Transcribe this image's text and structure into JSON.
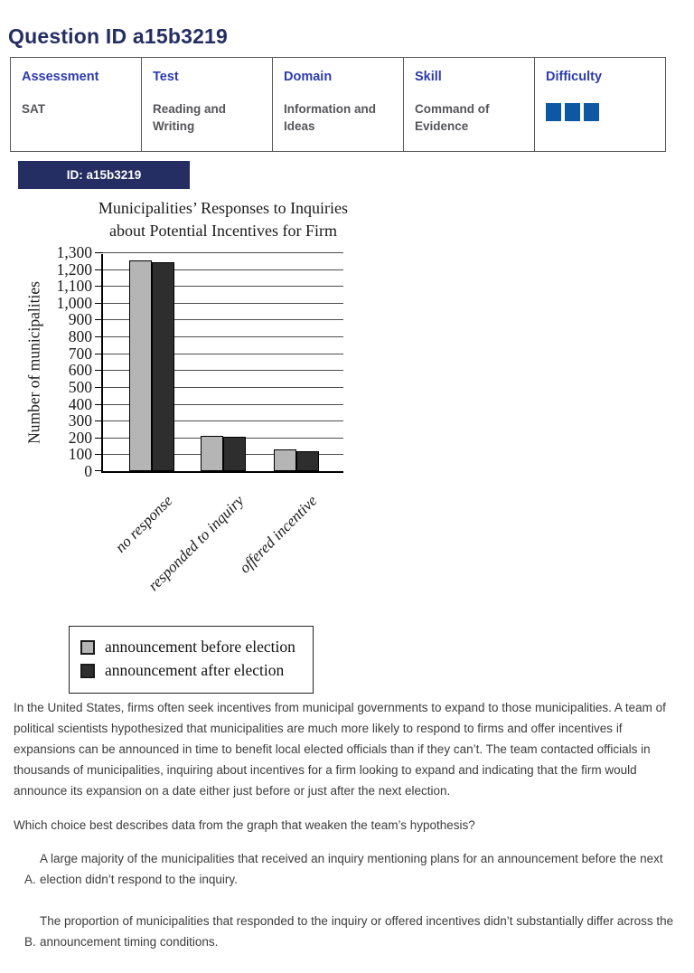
{
  "page": {
    "title": "Question ID a15b3219"
  },
  "meta_table": {
    "columns": [
      {
        "label": "Assessment",
        "value": "SAT"
      },
      {
        "label": "Test",
        "value": "Reading and Writing"
      },
      {
        "label": "Domain",
        "value": "Information and Ideas"
      },
      {
        "label": "Skill",
        "value": "Command of Evidence"
      },
      {
        "label": "Difficulty",
        "value": ""
      }
    ]
  },
  "difficulty": {
    "level": 3,
    "color": "#0d57a3"
  },
  "id_badge": {
    "label": "ID: a15b3219"
  },
  "chart_data": {
    "type": "bar",
    "title": "Municipalities’ Responses to Inquiries about Potential Incentives for Firm",
    "title_lines": [
      "Municipalities’ Responses to Inquiries",
      "about Potential Incentives for Firm"
    ],
    "ylabel": "Number of municipalities",
    "xlabel": "",
    "categories": [
      "no response",
      "responded to inquiry",
      "offered incentive"
    ],
    "series": [
      {
        "name": "announcement before election",
        "color": "#b5b5b5",
        "values": [
          1250,
          210,
          130
        ]
      },
      {
        "name": "announcement after election",
        "color": "#2e2e2e",
        "values": [
          1240,
          205,
          120
        ]
      }
    ],
    "ylim": [
      0,
      1300
    ],
    "ytick_step": 100,
    "grid": true,
    "legend_position": "below"
  },
  "passage": {
    "text": "In the United States, firms often seek incentives from municipal governments to expand to those municipalities. A team of political scientists hypothesized that municipalities are much more likely to respond to firms and offer incentives if expansions can be announced in time to benefit local elected officials than if they can’t. The team contacted officials in thousands of municipalities, inquiring about incentives for a firm looking to expand and indicating that the firm would announce its expansion on a date either just before or just after the next election."
  },
  "question": {
    "text": "Which choice best describes data from the graph that weaken the team’s hypothesis?"
  },
  "choices": [
    {
      "letter": "A.",
      "text": "A large majority of the municipalities that received an inquiry mentioning plans for an announcement before the next election didn’t respond to the inquiry."
    },
    {
      "letter": "B.",
      "text": "The proportion of municipalities that responded to the inquiry or offered incentives didn’t substantially differ across the announcement timing conditions."
    }
  ],
  "colors": {
    "heading_navy": "#252e62",
    "table_header_blue": "#2d3cae",
    "difficulty_blue": "#0d57a3",
    "bar_before": "#b5b5b5",
    "bar_after": "#2e2e2e",
    "body_text": "#3c3c3c"
  }
}
